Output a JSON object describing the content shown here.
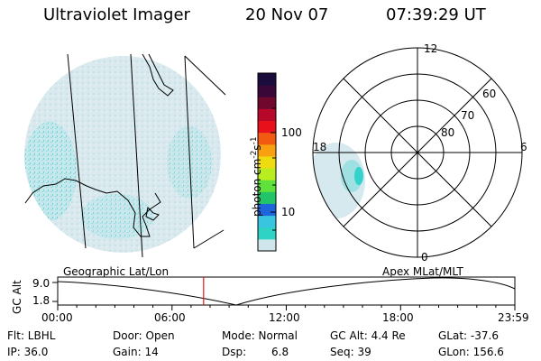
{
  "header": {
    "title": "Ultraviolet Imager",
    "date": "20 Nov 07",
    "time": "07:39:29 UT"
  },
  "colorbar": {
    "label": "photon cm",
    "label_exp1": "-2",
    "label_mid": "s",
    "label_exp2": "-1",
    "tick_labels": [
      "100",
      "10"
    ],
    "tick_values": [
      100,
      10
    ],
    "colors": [
      "#cfe6ec",
      "#2fd3c6",
      "#39c4e0",
      "#1e64dc",
      "#22c46a",
      "#5fe03a",
      "#b8ee20",
      "#eedc10",
      "#f8a010",
      "#f25a12",
      "#e8101a",
      "#b8082a",
      "#70082e",
      "#3a0838",
      "#1a0c3c"
    ]
  },
  "polar": {
    "lat_labels": [
      "60",
      "70",
      "80"
    ],
    "mlt_labels": [
      "12",
      "18",
      "6",
      "0"
    ]
  },
  "timeline": {
    "left_label": "Geographic Lat/Lon",
    "right_label": "Apex MLat/MLT",
    "axis_title": "GC Alt",
    "y_labels": [
      "9.0",
      "1.8"
    ],
    "x_labels": [
      "00:00",
      "06:00",
      "12:00",
      "18:00",
      "23:59"
    ],
    "current_time_hours": 7.66
  },
  "info": {
    "row1": {
      "flt": "Flt: LBHL",
      "door": "Door: Open",
      "mode": "Mode: Normal",
      "gcalt": "GC Alt: 4.4 Re",
      "glat": "GLat: -37.6"
    },
    "row2": {
      "ip": "IP: 36.0",
      "gain": "Gain: 14",
      "dsp_label": "Dsp:",
      "dsp_value": "6.8",
      "seq": "Seq: 39",
      "glon": "GLon: 156.6"
    }
  }
}
